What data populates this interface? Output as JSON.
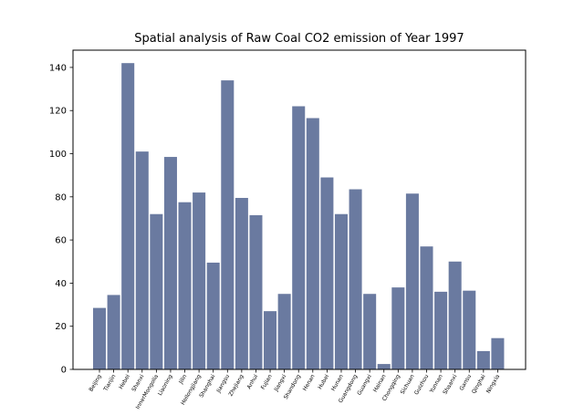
{
  "chart_data": {
    "type": "bar",
    "title": "Spatial analysis of Raw Coal CO2 emission of Year 1997",
    "xlabel": "",
    "ylabel": "",
    "ylim": [
      0,
      148
    ],
    "yticks": [
      0,
      20,
      40,
      60,
      80,
      100,
      120,
      140
    ],
    "grid": false,
    "bar_color": "#6a7aa0",
    "categories": [
      "Beijing",
      "Tianjin",
      "Hebei",
      "Shanxi",
      "InnerMongolia",
      "Liaoning",
      "Jilin",
      "Heilongjiang",
      "Shanghai",
      "Jiangsu",
      "Zhejiang",
      "Anhui",
      "Fujian",
      "Jiangxi",
      "Shandong",
      "Henan",
      "Hubei",
      "Hunan",
      "Guangdong",
      "Guangxi",
      "Hainan",
      "Chongqing",
      "Sichuan",
      "Guizhou",
      "Yunnan",
      "Shaanxi",
      "Gansu",
      "Qinghai",
      "Ningxia"
    ],
    "values": [
      28.5,
      34.5,
      142,
      101,
      72,
      98.5,
      77.5,
      82,
      49.5,
      134,
      79.5,
      71.5,
      27,
      35,
      122,
      116.5,
      89,
      72,
      83.5,
      35,
      2.5,
      38,
      81.5,
      57,
      36,
      50,
      36.5,
      8.5,
      14.5
    ]
  }
}
